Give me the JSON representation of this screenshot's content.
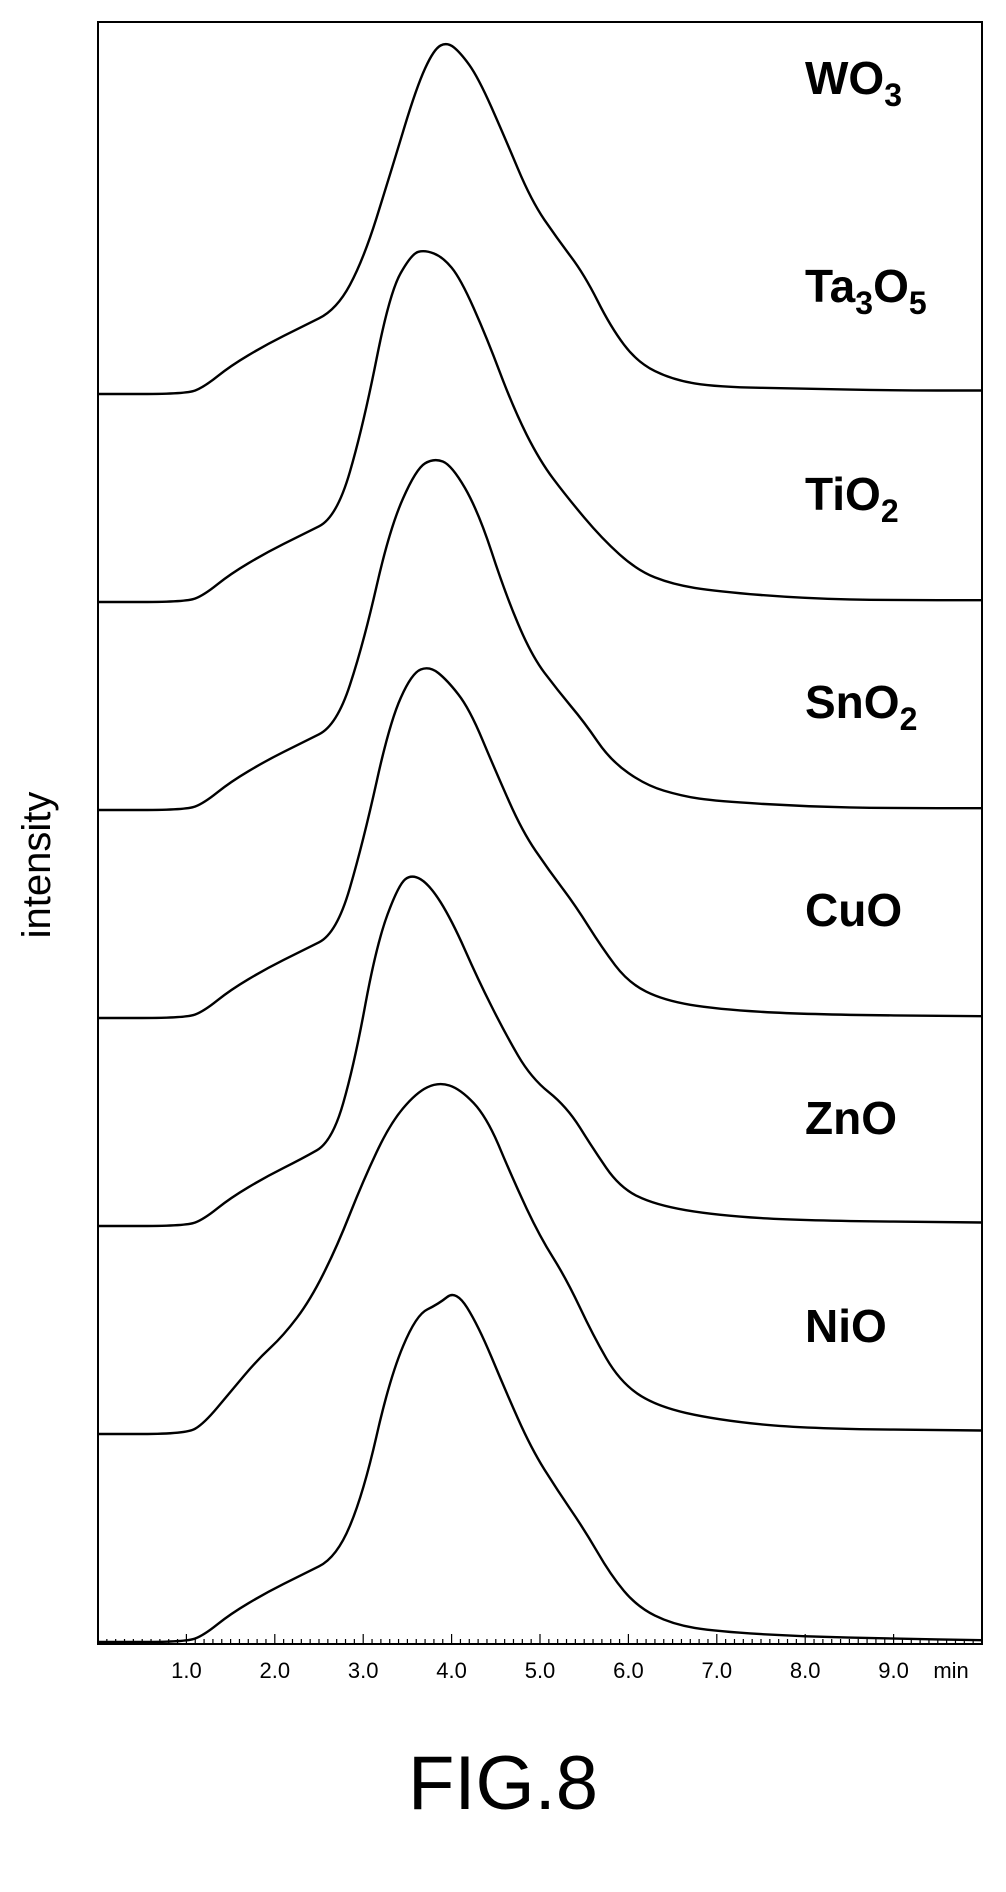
{
  "figure_caption": "FIG.8",
  "chart_data": {
    "type": "line",
    "ylabel": "intensity",
    "xlabel": "",
    "x_unit": "min",
    "xlim": [
      0,
      10
    ],
    "x_ticks": [
      "1.0",
      "2.0",
      "3.0",
      "4.0",
      "5.0",
      "6.0",
      "7.0",
      "8.0",
      "9.0"
    ],
    "layout": "stacked traces, no y-axis ticks",
    "series": [
      {
        "name": "WO3",
        "label_base": "WO",
        "label_sub": "3",
        "label_base2": "",
        "label_sub2": "",
        "points": [
          [
            0,
            0.0
          ],
          [
            1.0,
            0.0
          ],
          [
            1.2,
            0.02
          ],
          [
            1.5,
            0.08
          ],
          [
            1.9,
            0.14
          ],
          [
            2.3,
            0.19
          ],
          [
            2.7,
            0.24
          ],
          [
            3.0,
            0.38
          ],
          [
            3.3,
            0.62
          ],
          [
            3.6,
            0.87
          ],
          [
            3.8,
            0.98
          ],
          [
            3.95,
            1.0
          ],
          [
            4.1,
            0.97
          ],
          [
            4.3,
            0.9
          ],
          [
            4.6,
            0.73
          ],
          [
            4.9,
            0.55
          ],
          [
            5.2,
            0.44
          ],
          [
            5.5,
            0.34
          ],
          [
            5.8,
            0.19
          ],
          [
            6.1,
            0.09
          ],
          [
            6.5,
            0.04
          ],
          [
            7.0,
            0.02
          ],
          [
            8.0,
            0.015
          ],
          [
            9.0,
            0.01
          ],
          [
            10.0,
            0.01
          ]
        ]
      },
      {
        "name": "Ta3O5",
        "label_base": "Ta",
        "label_sub": "3",
        "label_base2": "O",
        "label_sub2": "5",
        "points": [
          [
            0,
            0.0
          ],
          [
            1.0,
            0.0
          ],
          [
            1.2,
            0.02
          ],
          [
            1.5,
            0.08
          ],
          [
            1.9,
            0.14
          ],
          [
            2.3,
            0.19
          ],
          [
            2.7,
            0.24
          ],
          [
            3.0,
            0.5
          ],
          [
            3.3,
            0.88
          ],
          [
            3.55,
            0.99
          ],
          [
            3.7,
            1.0
          ],
          [
            3.9,
            0.98
          ],
          [
            4.1,
            0.92
          ],
          [
            4.4,
            0.75
          ],
          [
            4.7,
            0.55
          ],
          [
            5.0,
            0.4
          ],
          [
            5.3,
            0.3
          ],
          [
            5.7,
            0.18
          ],
          [
            6.1,
            0.09
          ],
          [
            6.5,
            0.05
          ],
          [
            7.0,
            0.03
          ],
          [
            8.0,
            0.01
          ],
          [
            9.0,
            0.005
          ],
          [
            10.0,
            0.005
          ]
        ]
      },
      {
        "name": "TiO2",
        "label_base": "TiO",
        "label_sub": "2",
        "label_base2": "",
        "label_sub2": "",
        "points": [
          [
            0,
            0.0
          ],
          [
            1.0,
            0.0
          ],
          [
            1.2,
            0.02
          ],
          [
            1.5,
            0.08
          ],
          [
            1.9,
            0.14
          ],
          [
            2.3,
            0.19
          ],
          [
            2.7,
            0.24
          ],
          [
            3.0,
            0.47
          ],
          [
            3.3,
            0.8
          ],
          [
            3.6,
            0.97
          ],
          [
            3.8,
            1.0
          ],
          [
            4.0,
            0.98
          ],
          [
            4.3,
            0.85
          ],
          [
            4.6,
            0.62
          ],
          [
            4.9,
            0.44
          ],
          [
            5.2,
            0.34
          ],
          [
            5.5,
            0.25
          ],
          [
            5.8,
            0.14
          ],
          [
            6.2,
            0.07
          ],
          [
            6.6,
            0.04
          ],
          [
            7.0,
            0.025
          ],
          [
            8.0,
            0.01
          ],
          [
            9.0,
            0.005
          ],
          [
            10.0,
            0.005
          ]
        ]
      },
      {
        "name": "SnO2",
        "label_base": "SnO",
        "label_sub": "2",
        "label_base2": "",
        "label_sub2": "",
        "points": [
          [
            0,
            0.0
          ],
          [
            1.0,
            0.0
          ],
          [
            1.2,
            0.02
          ],
          [
            1.5,
            0.08
          ],
          [
            1.9,
            0.14
          ],
          [
            2.3,
            0.19
          ],
          [
            2.7,
            0.24
          ],
          [
            3.0,
            0.5
          ],
          [
            3.3,
            0.84
          ],
          [
            3.55,
            0.98
          ],
          [
            3.75,
            1.0
          ],
          [
            3.95,
            0.96
          ],
          [
            4.2,
            0.88
          ],
          [
            4.5,
            0.7
          ],
          [
            4.8,
            0.53
          ],
          [
            5.1,
            0.42
          ],
          [
            5.4,
            0.32
          ],
          [
            5.7,
            0.2
          ],
          [
            6.0,
            0.1
          ],
          [
            6.4,
            0.05
          ],
          [
            7.0,
            0.025
          ],
          [
            8.0,
            0.01
          ],
          [
            10.0,
            0.005
          ]
        ]
      },
      {
        "name": "CuO",
        "label_base": "CuO",
        "label_sub": "",
        "label_base2": "",
        "label_sub2": "",
        "points": [
          [
            0,
            0.0
          ],
          [
            1.0,
            0.0
          ],
          [
            1.2,
            0.02
          ],
          [
            1.5,
            0.08
          ],
          [
            1.9,
            0.14
          ],
          [
            2.3,
            0.19
          ],
          [
            2.65,
            0.24
          ],
          [
            2.9,
            0.46
          ],
          [
            3.15,
            0.8
          ],
          [
            3.4,
            0.97
          ],
          [
            3.55,
            1.0
          ],
          [
            3.75,
            0.97
          ],
          [
            4.0,
            0.87
          ],
          [
            4.3,
            0.7
          ],
          [
            4.6,
            0.55
          ],
          [
            4.9,
            0.42
          ],
          [
            5.3,
            0.34
          ],
          [
            5.6,
            0.22
          ],
          [
            5.9,
            0.11
          ],
          [
            6.3,
            0.06
          ],
          [
            7.0,
            0.03
          ],
          [
            8.0,
            0.015
          ],
          [
            10.0,
            0.01
          ]
        ]
      },
      {
        "name": "ZnO",
        "label_base": "ZnO",
        "label_sub": "",
        "label_base2": "",
        "label_sub2": "",
        "points": [
          [
            0,
            0.0
          ],
          [
            1.0,
            0.0
          ],
          [
            1.2,
            0.03
          ],
          [
            1.5,
            0.12
          ],
          [
            1.8,
            0.21
          ],
          [
            2.1,
            0.28
          ],
          [
            2.4,
            0.38
          ],
          [
            2.7,
            0.53
          ],
          [
            3.0,
            0.72
          ],
          [
            3.3,
            0.88
          ],
          [
            3.6,
            0.97
          ],
          [
            3.85,
            1.0
          ],
          [
            4.1,
            0.98
          ],
          [
            4.4,
            0.9
          ],
          [
            4.7,
            0.72
          ],
          [
            5.0,
            0.56
          ],
          [
            5.3,
            0.44
          ],
          [
            5.6,
            0.28
          ],
          [
            5.9,
            0.15
          ],
          [
            6.3,
            0.08
          ],
          [
            7.0,
            0.04
          ],
          [
            8.0,
            0.015
          ],
          [
            10.0,
            0.01
          ]
        ]
      },
      {
        "name": "NiO",
        "label_base": "NiO",
        "label_sub": "",
        "label_base2": "",
        "label_sub2": "",
        "points": [
          [
            0,
            0.0
          ],
          [
            1.0,
            0.0
          ],
          [
            1.2,
            0.02
          ],
          [
            1.5,
            0.08
          ],
          [
            1.9,
            0.14
          ],
          [
            2.3,
            0.19
          ],
          [
            2.7,
            0.24
          ],
          [
            3.0,
            0.42
          ],
          [
            3.3,
            0.75
          ],
          [
            3.6,
            0.93
          ],
          [
            3.85,
            0.96
          ],
          [
            4.05,
            1.0
          ],
          [
            4.3,
            0.9
          ],
          [
            4.6,
            0.72
          ],
          [
            4.9,
            0.55
          ],
          [
            5.2,
            0.43
          ],
          [
            5.5,
            0.32
          ],
          [
            5.8,
            0.19
          ],
          [
            6.1,
            0.1
          ],
          [
            6.5,
            0.05
          ],
          [
            7.0,
            0.03
          ],
          [
            8.0,
            0.015
          ],
          [
            9.0,
            0.01
          ],
          [
            10.0,
            0.005
          ]
        ]
      }
    ]
  }
}
